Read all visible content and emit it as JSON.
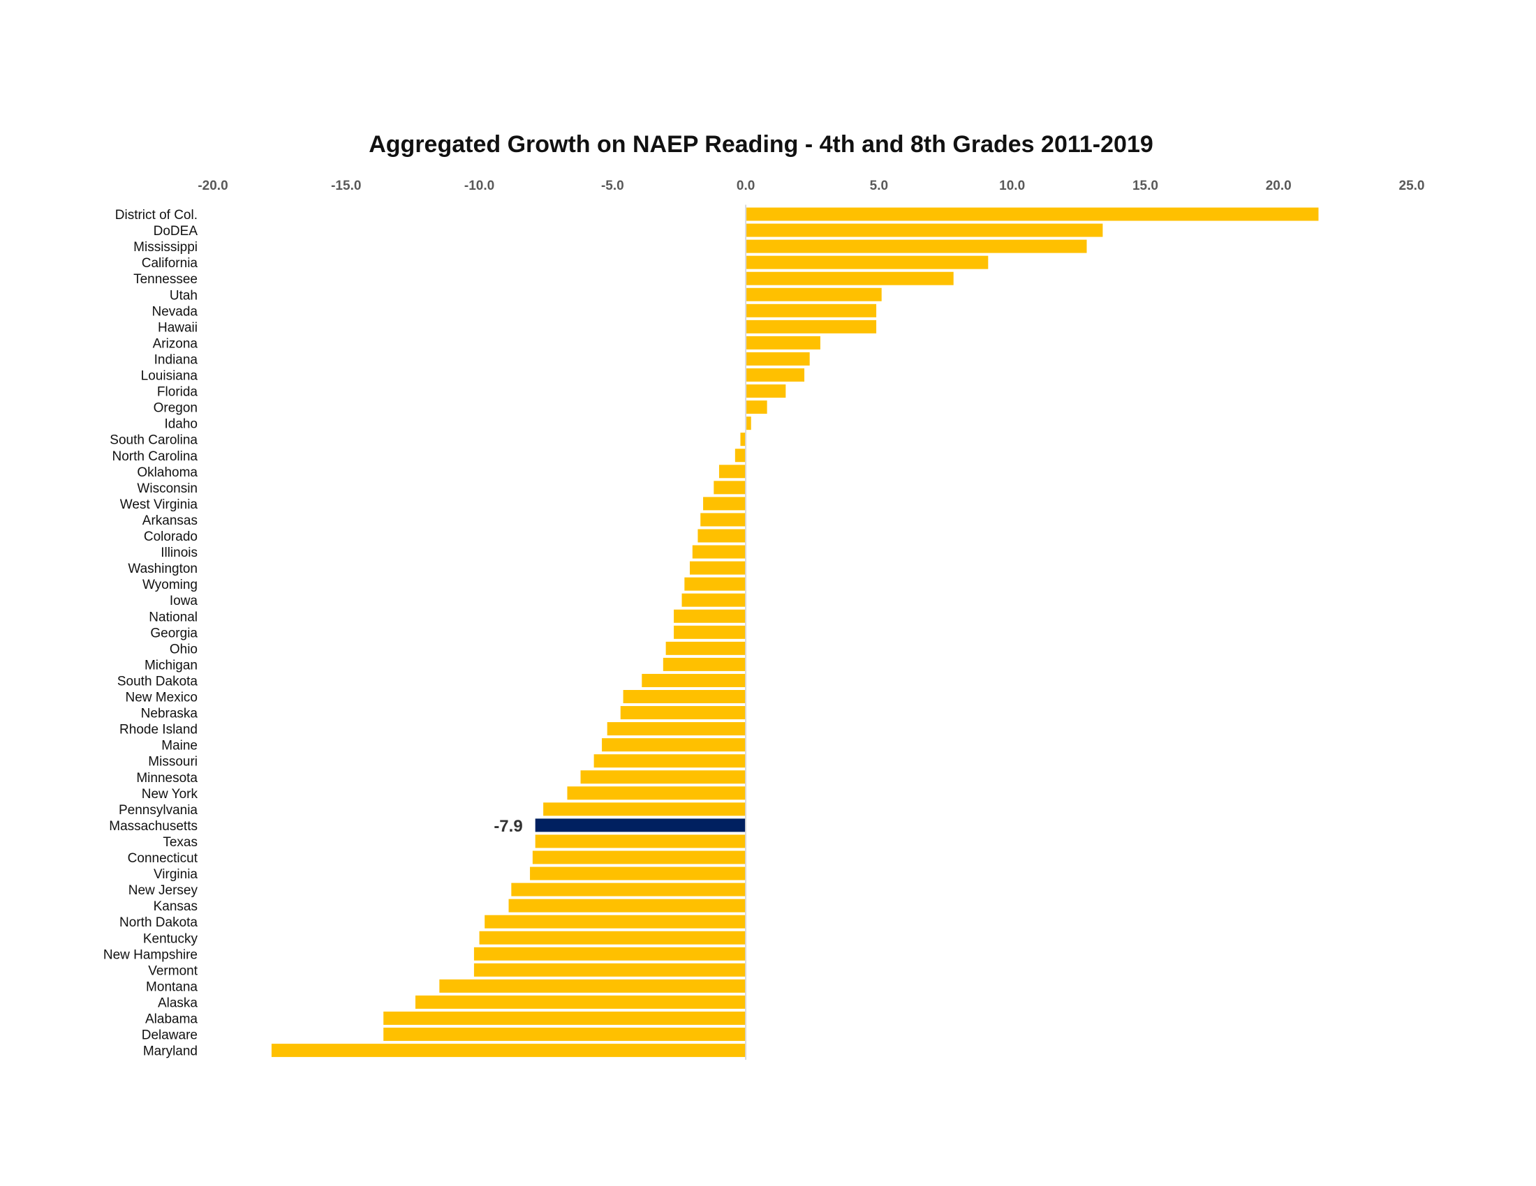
{
  "colors": {
    "bar": "#FFC000",
    "highlight": "#002060",
    "axis": "#D9D9D9"
  },
  "chart_data": {
    "type": "bar",
    "orientation": "horizontal",
    "title": "Aggregated Growth on NAEP Reading - 4th and 8th Grades 2011-2019",
    "xlabel": "",
    "ylabel": "",
    "xlim": [
      -20,
      25
    ],
    "xticks": [
      "-20.0",
      "-15.0",
      "-10.0",
      "-5.0",
      "0.0",
      "5.0",
      "10.0",
      "15.0",
      "20.0",
      "25.0"
    ],
    "grid": false,
    "legend": "none",
    "highlight": {
      "category": "Massachusetts",
      "label": "-7.9"
    },
    "categories": [
      "District of Col.",
      "DoDEA",
      "Mississippi",
      "California",
      "Tennessee",
      "Utah",
      "Nevada",
      "Hawaii",
      "Arizona",
      "Indiana",
      "Louisiana",
      "Florida",
      "Oregon",
      "Idaho",
      "South Carolina",
      "North Carolina",
      "Oklahoma",
      "Wisconsin",
      "West Virginia",
      "Arkansas",
      "Colorado",
      "Illinois",
      "Washington",
      "Wyoming",
      "Iowa",
      "National",
      "Georgia",
      "Ohio",
      "Michigan",
      "South Dakota",
      "New Mexico",
      "Nebraska",
      "Rhode Island",
      "Maine",
      "Missouri",
      "Minnesota",
      "New York",
      "Pennsylvania",
      "Massachusetts",
      "Texas",
      "Connecticut",
      "Virginia",
      "New Jersey",
      "Kansas",
      "North Dakota",
      "Kentucky",
      "New Hampshire",
      "Vermont",
      "Montana",
      "Alaska",
      "Alabama",
      "Delaware",
      "Maryland"
    ],
    "values": [
      21.5,
      13.4,
      12.8,
      9.1,
      7.8,
      5.1,
      4.9,
      4.9,
      2.8,
      2.4,
      2.2,
      1.5,
      0.8,
      0.2,
      -0.2,
      -0.4,
      -1.0,
      -1.2,
      -1.6,
      -1.7,
      -1.8,
      -2.0,
      -2.1,
      -2.3,
      -2.4,
      -2.7,
      -2.7,
      -3.0,
      -3.1,
      -3.9,
      -4.6,
      -4.7,
      -5.2,
      -5.4,
      -5.7,
      -6.2,
      -6.7,
      -7.6,
      -7.9,
      -7.9,
      -8.0,
      -8.1,
      -8.8,
      -8.9,
      -9.8,
      -10.0,
      -10.2,
      -10.2,
      -11.5,
      -12.4,
      -13.6,
      -13.6,
      -17.8
    ]
  }
}
